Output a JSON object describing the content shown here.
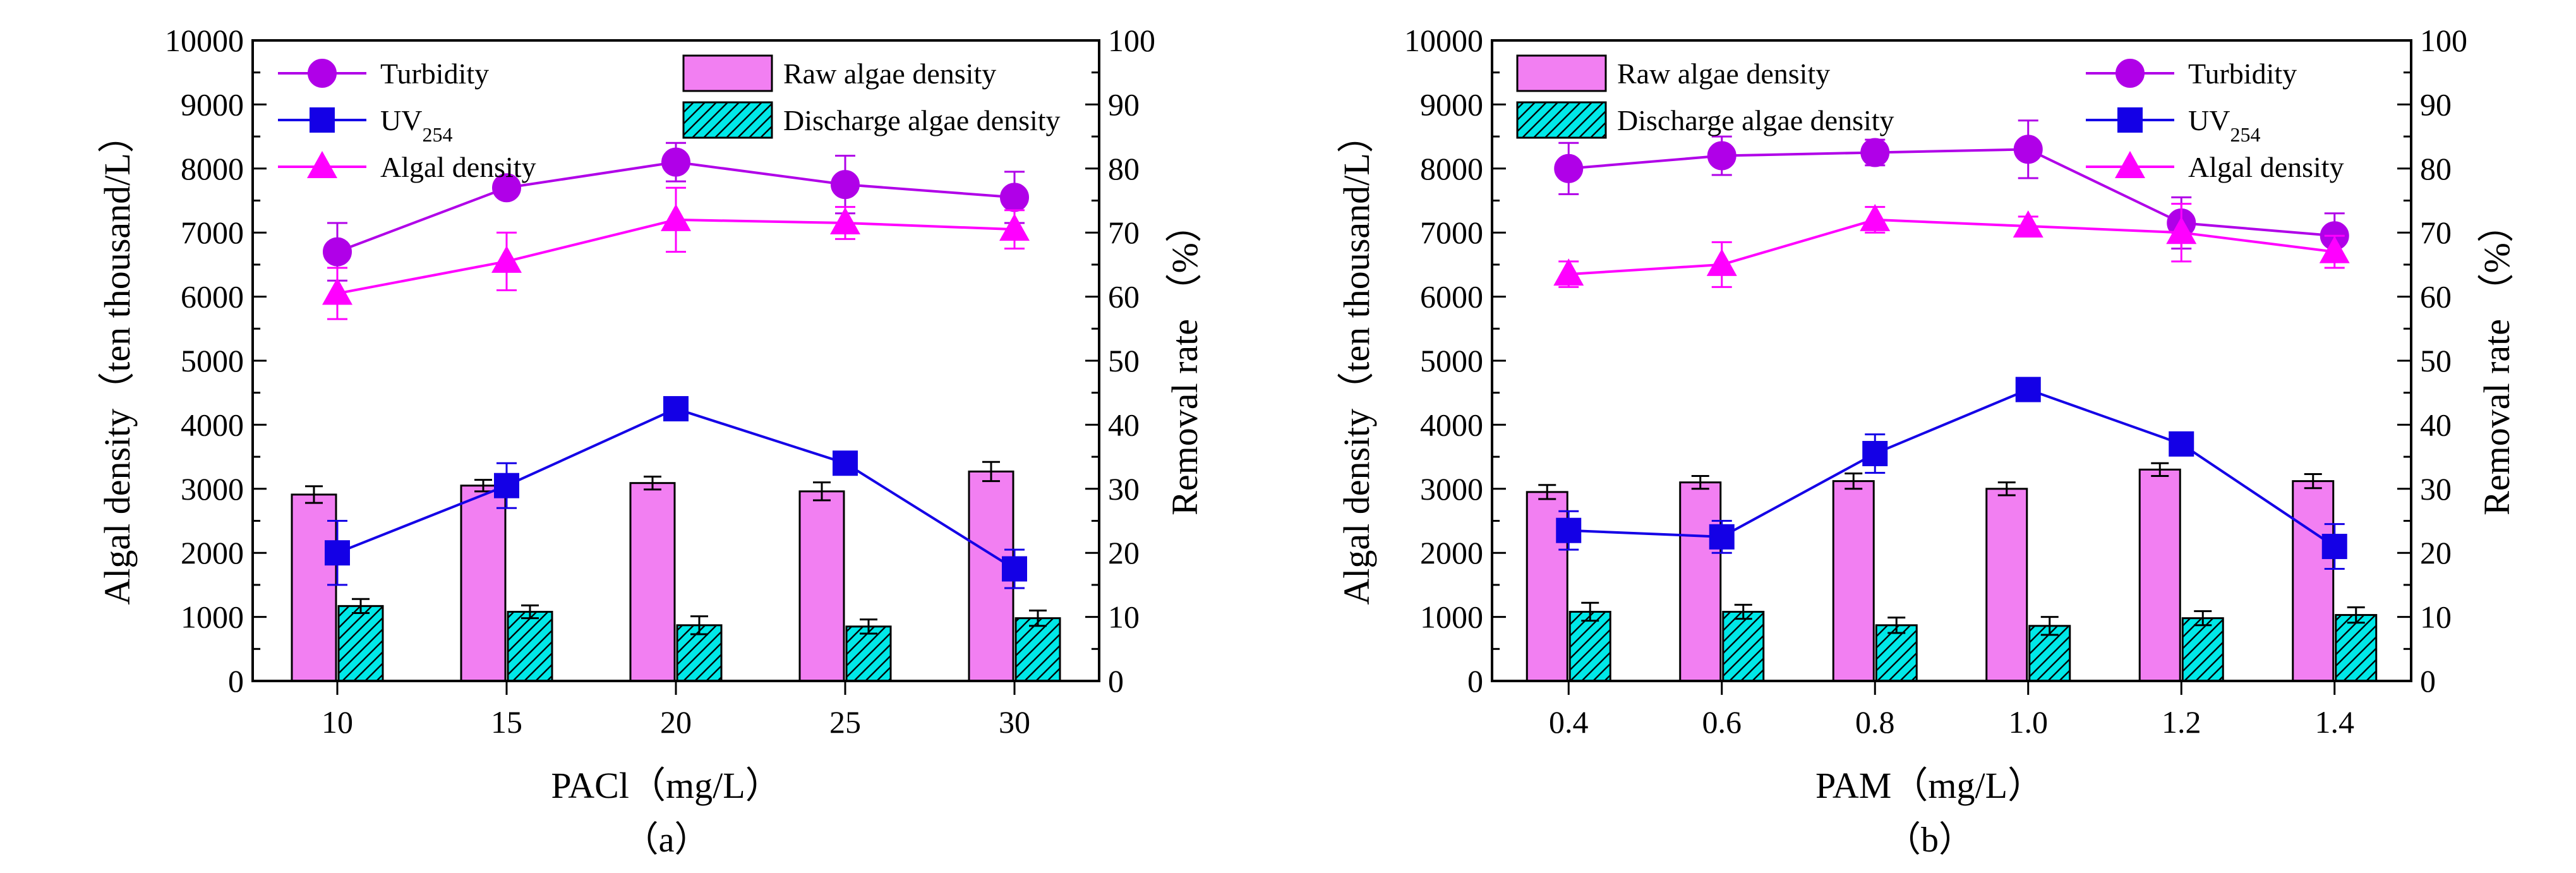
{
  "colors": {
    "turbidity": "#b000e8",
    "uv254": "#1400e6",
    "algal": "#ff00ff",
    "raw_bar": "#f27ff2",
    "discharge_bar": "#00e8e8",
    "axis": "#000000"
  },
  "chart_data": [
    {
      "type": "bar+line",
      "panel_label": "（a）",
      "xlabel": "PACl（mg/L）",
      "ylabel_left": "Algal density（ten thousand/L）",
      "ylabel_right": "Removal rate （%）",
      "categories": [
        "10",
        "15",
        "20",
        "25",
        "30"
      ],
      "ylim_left": [
        0,
        10000
      ],
      "yticks_left": [
        "0",
        "1000",
        "2000",
        "3000",
        "4000",
        "5000",
        "6000",
        "7000",
        "8000",
        "9000",
        "10000"
      ],
      "ylim_right": [
        0,
        100
      ],
      "yticks_right": [
        "0",
        "10",
        "20",
        "30",
        "40",
        "50",
        "60",
        "70",
        "80",
        "90",
        "100"
      ],
      "bar_series": [
        {
          "name": "Raw algae density",
          "values": [
            2910,
            3050,
            3090,
            2960,
            3270
          ],
          "errors": [
            130,
            90,
            100,
            140,
            150
          ]
        },
        {
          "name": "Discharge algae density",
          "values": [
            1170,
            1080,
            870,
            850,
            980
          ],
          "errors": [
            110,
            100,
            140,
            110,
            120
          ]
        }
      ],
      "line_series": [
        {
          "name": "Turbidity",
          "values": [
            67,
            77,
            81,
            77.5,
            75.5
          ],
          "errors": [
            4.5,
            1.5,
            3.0,
            4.5,
            4.0
          ]
        },
        {
          "name": "UV",
          "name_sub": "254",
          "values": [
            20,
            30.5,
            42.5,
            34,
            17.5
          ],
          "errors": [
            5,
            3.5,
            1,
            1.5,
            3
          ]
        },
        {
          "name": "Algal density",
          "values": [
            60.5,
            65.5,
            72,
            71.5,
            70.5
          ],
          "errors": [
            4,
            4.5,
            5,
            2.5,
            3
          ]
        }
      ],
      "legend_lines": [
        "Turbidity",
        "UV",
        "Algal density"
      ],
      "legend_bars": [
        "Raw algae density",
        "Discharge algae density"
      ]
    },
    {
      "type": "bar+line",
      "panel_label": "（b）",
      "xlabel": "PAM（mg/L）",
      "ylabel_left": "Algal density（ten thousand/L）",
      "ylabel_right": "Removal rate （%）",
      "categories": [
        "0.4",
        "0.6",
        "0.8",
        "1.0",
        "1.2",
        "1.4"
      ],
      "ylim_left": [
        0,
        10000
      ],
      "yticks_left": [
        "0",
        "1000",
        "2000",
        "3000",
        "4000",
        "5000",
        "6000",
        "7000",
        "8000",
        "9000",
        "10000"
      ],
      "ylim_right": [
        0,
        100
      ],
      "yticks_right": [
        "0",
        "10",
        "20",
        "30",
        "40",
        "50",
        "60",
        "70",
        "80",
        "90",
        "100"
      ],
      "bar_series": [
        {
          "name": "Raw algae density",
          "values": [
            2950,
            3100,
            3120,
            3000,
            3300,
            3120
          ],
          "errors": [
            110,
            100,
            120,
            100,
            100,
            110
          ]
        },
        {
          "name": "Discharge algae density",
          "values": [
            1080,
            1080,
            870,
            860,
            980,
            1030
          ],
          "errors": [
            140,
            110,
            120,
            140,
            110,
            120
          ]
        }
      ],
      "line_series": [
        {
          "name": "Turbidity",
          "values": [
            80,
            82,
            82.5,
            83,
            71.5,
            69.5
          ],
          "errors": [
            4.0,
            3.0,
            2.0,
            4.5,
            4.0,
            3.5
          ]
        },
        {
          "name": "UV",
          "name_sub": "254",
          "values": [
            23.5,
            22.5,
            35.5,
            45.5,
            37,
            21
          ],
          "errors": [
            3,
            2.5,
            3,
            1,
            1,
            3.5
          ]
        },
        {
          "name": "Algal density",
          "values": [
            63.5,
            65,
            72,
            71,
            70,
            67
          ],
          "errors": [
            2,
            3.5,
            2,
            1.5,
            4.5,
            2.5
          ]
        }
      ],
      "legend_bars": [
        "Raw algae density",
        "Discharge algae density"
      ],
      "legend_lines": [
        "Turbidity",
        "UV",
        "Algal density"
      ]
    }
  ]
}
